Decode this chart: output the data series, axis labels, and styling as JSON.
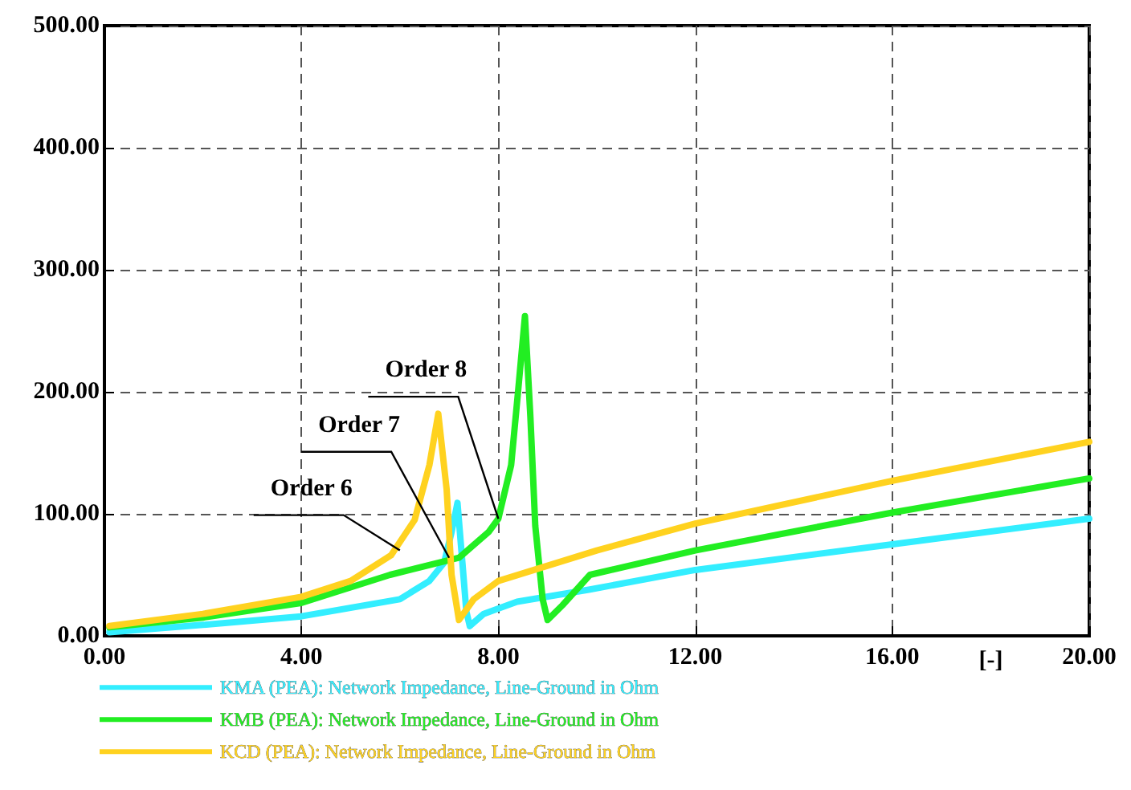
{
  "chart_data": {
    "type": "line",
    "xlabel": "[-]",
    "xlim": [
      0,
      20
    ],
    "xticks": [
      {
        "value": 0,
        "label": "0.00"
      },
      {
        "value": 4,
        "label": "4.00"
      },
      {
        "value": 8,
        "label": "8.00"
      },
      {
        "value": 12,
        "label": "12.00"
      },
      {
        "value": 16,
        "label": "16.00"
      },
      {
        "value": 20,
        "label": "20.00"
      }
    ],
    "ylim": [
      0,
      500
    ],
    "yticks": [
      {
        "value": 0,
        "label": "0.00"
      },
      {
        "value": 100,
        "label": "100.00"
      },
      {
        "value": 200,
        "label": "200.00"
      },
      {
        "value": 300,
        "label": "300.00"
      },
      {
        "value": 400,
        "label": "400.00"
      },
      {
        "value": 500,
        "label": "500.00"
      }
    ],
    "grid": true,
    "legend": "bottom",
    "marker": "none",
    "line_style": "solid",
    "series": [
      {
        "name": "KMA (PEA): Network Impedance, Line-Ground in Ohm",
        "color": "#33eeff",
        "x": [
          0.1,
          2,
          4,
          6,
          6.6,
          6.9,
          7.05,
          7.17,
          7.27,
          7.35,
          7.42,
          7.7,
          8.38,
          9.86,
          12,
          16,
          20
        ],
        "values": [
          3,
          9,
          16,
          30,
          45,
          60,
          85,
          109,
          60,
          20,
          8,
          18,
          28,
          38,
          54,
          75,
          96
        ]
      },
      {
        "name": "KMB (PEA): Network Impedance, Line-Ground in Ohm",
        "color": "#22ee22",
        "x": [
          0.1,
          2,
          4,
          5.8,
          7.2,
          7.8,
          8,
          8.26,
          8.4,
          8.54,
          8.65,
          8.75,
          8.9,
          9,
          9.3,
          9.86,
          12,
          16,
          20
        ],
        "values": [
          7,
          15,
          27,
          50,
          64,
          85,
          96,
          140,
          200,
          262,
          180,
          90,
          30,
          13,
          25,
          50,
          70,
          101,
          129
        ]
      },
      {
        "name": "KCD (PEA): Network Impedance, Line-Ground in Ohm",
        "color": "#ffd21f",
        "x": [
          0.1,
          2,
          4,
          5,
          5.82,
          6.3,
          6.6,
          6.78,
          6.95,
          7.05,
          7.2,
          7.5,
          8,
          10,
          12,
          16,
          20
        ],
        "values": [
          8,
          18,
          32,
          45,
          66,
          95,
          140,
          182,
          120,
          50,
          13,
          30,
          45,
          70,
          92,
          127,
          159
        ]
      }
    ],
    "annotations": [
      {
        "text": "Order 6",
        "x": 6.0,
        "y": 70
      },
      {
        "text": "Order 7",
        "x": 7.0,
        "y": 64
      },
      {
        "text": "Order 8",
        "x": 8.0,
        "y": 96
      }
    ]
  }
}
